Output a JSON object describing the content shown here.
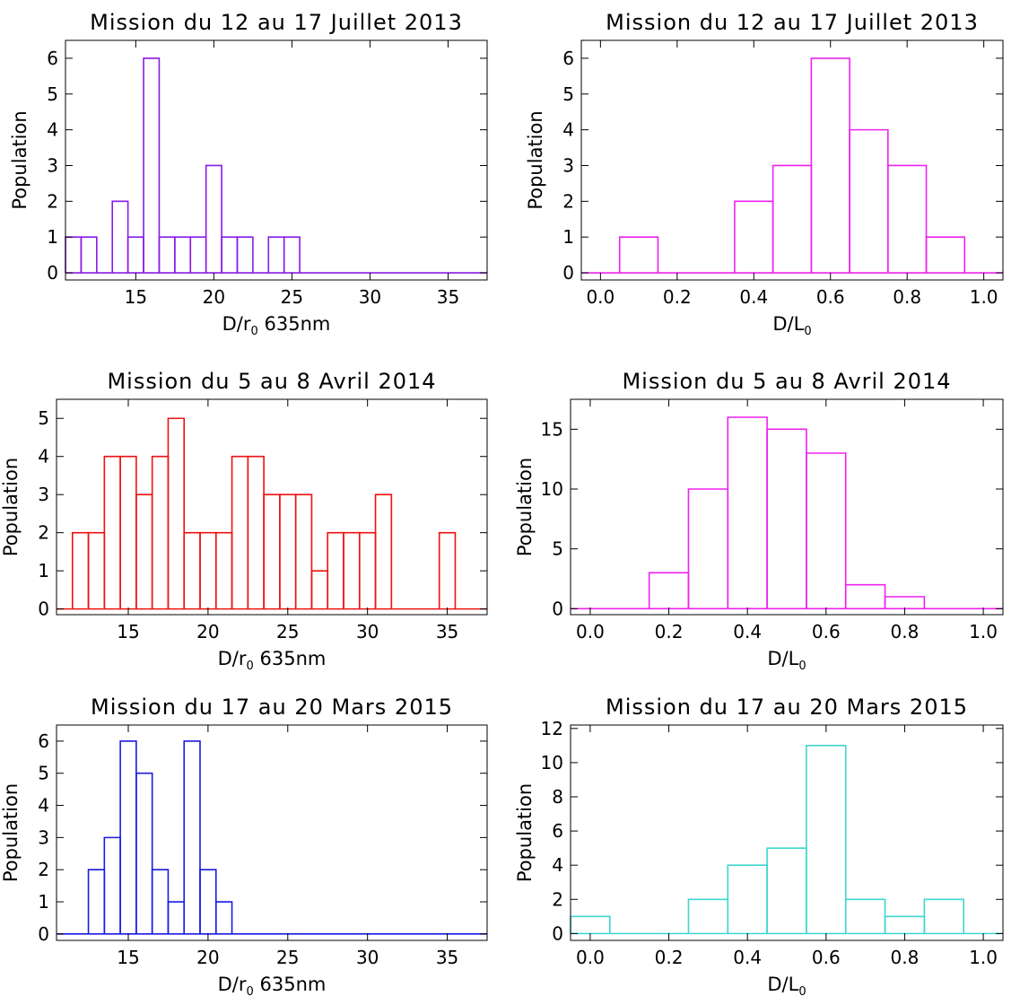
{
  "figure": {
    "description_none": "",
    "background": "#ffffff",
    "axis_color": "#000000"
  },
  "chart_data": [
    {
      "type": "bar",
      "title": "Mission du 12 au 17 Juillet 2013",
      "xlabel": {
        "base": "D/r",
        "sub": "0",
        "suffix": " 635nm"
      },
      "ylabel": "Population",
      "color": "#8a1ae6",
      "bin_width": 1,
      "bin_lefts": [
        10.5,
        11.5,
        12.5,
        13.5,
        14.5,
        15.5,
        16.5,
        17.5,
        18.5,
        19.5,
        20.5,
        21.5,
        22.5,
        23.5,
        24.5,
        25.5,
        26.5,
        27.5,
        28.5,
        29.5,
        30.5,
        31.5,
        32.5,
        33.5,
        34.5,
        35.5,
        36.5
      ],
      "values": [
        1,
        1,
        0,
        2,
        1,
        6,
        1,
        1,
        1,
        3,
        1,
        1,
        0,
        1,
        1,
        0,
        0,
        0,
        0,
        0,
        0,
        0,
        0,
        0,
        0,
        0,
        0
      ],
      "xlim": [
        10.5,
        37.5
      ],
      "ylim": [
        -0.2,
        6.5
      ],
      "xticks": [
        15,
        20,
        25,
        30,
        35
      ],
      "xtick_labels": [
        "15",
        "20",
        "25",
        "30",
        "35"
      ],
      "yticks": [
        0,
        1,
        2,
        3,
        4,
        5,
        6
      ],
      "ytick_labels": [
        "0",
        "1",
        "2",
        "3",
        "4",
        "5",
        "6"
      ]
    },
    {
      "type": "bar",
      "title": "Mission du 12 au 17 Juillet 2013",
      "xlabel": {
        "base": "D/L",
        "sub": "0",
        "suffix": ""
      },
      "ylabel": "Population",
      "color": "#ee22ee",
      "bin_width": 0.1,
      "bin_lefts": [
        -0.05,
        0.05,
        0.15,
        0.25,
        0.35,
        0.45,
        0.55,
        0.65,
        0.75,
        0.85,
        0.95
      ],
      "values": [
        0,
        1,
        0,
        0,
        2,
        3,
        6,
        4,
        3,
        1,
        0
      ],
      "xlim": [
        -0.05,
        1.05
      ],
      "ylim": [
        -0.2,
        6.5
      ],
      "xticks": [
        0.0,
        0.2,
        0.4,
        0.6,
        0.8,
        1.0
      ],
      "xtick_labels": [
        "0.0",
        "0.2",
        "0.4",
        "0.6",
        "0.8",
        "1.0"
      ],
      "yticks": [
        0,
        1,
        2,
        3,
        4,
        5,
        6
      ],
      "ytick_labels": [
        "0",
        "1",
        "2",
        "3",
        "4",
        "5",
        "6"
      ]
    },
    {
      "type": "bar",
      "title": "Mission du 5 au 8 Avril 2014",
      "xlabel": {
        "base": "D/r",
        "sub": "0",
        "suffix": " 635nm"
      },
      "ylabel": "Population",
      "color": "#ee1111",
      "bin_width": 1,
      "bin_lefts": [
        10.5,
        11.5,
        12.5,
        13.5,
        14.5,
        15.5,
        16.5,
        17.5,
        18.5,
        19.5,
        20.5,
        21.5,
        22.5,
        23.5,
        24.5,
        25.5,
        26.5,
        27.5,
        28.5,
        29.5,
        30.5,
        31.5,
        32.5,
        33.5,
        34.5,
        35.5,
        36.5
      ],
      "values": [
        0,
        2,
        2,
        4,
        4,
        3,
        4,
        5,
        2,
        2,
        2,
        4,
        4,
        3,
        3,
        3,
        1,
        2,
        2,
        2,
        3,
        0,
        0,
        0,
        2,
        0,
        0
      ],
      "xlim": [
        10.5,
        37.5
      ],
      "ylim": [
        -0.15,
        5.5
      ],
      "xticks": [
        15,
        20,
        25,
        30,
        35
      ],
      "xtick_labels": [
        "15",
        "20",
        "25",
        "30",
        "35"
      ],
      "yticks": [
        0,
        1,
        2,
        3,
        4,
        5
      ],
      "ytick_labels": [
        "0",
        "1",
        "2",
        "3",
        "4",
        "5"
      ]
    },
    {
      "type": "bar",
      "title": "Mission du 5 au 8 Avril 2014",
      "xlabel": {
        "base": "D/L",
        "sub": "0",
        "suffix": ""
      },
      "ylabel": "Population",
      "color": "#ee22ee",
      "bin_width": 0.1,
      "bin_lefts": [
        -0.05,
        0.05,
        0.15,
        0.25,
        0.35,
        0.45,
        0.55,
        0.65,
        0.75,
        0.85,
        0.95
      ],
      "values": [
        0,
        0,
        3,
        10,
        16,
        15,
        13,
        2,
        1,
        0,
        0
      ],
      "xlim": [
        -0.05,
        1.05
      ],
      "ylim": [
        -0.5,
        17.5
      ],
      "xticks": [
        0.0,
        0.2,
        0.4,
        0.6,
        0.8,
        1.0
      ],
      "xtick_labels": [
        "0.0",
        "0.2",
        "0.4",
        "0.6",
        "0.8",
        "1.0"
      ],
      "yticks": [
        0,
        5,
        10,
        15
      ],
      "ytick_labels": [
        "0",
        "5",
        "10",
        "15"
      ]
    },
    {
      "type": "bar",
      "title": "Mission du 17 au 20 Mars 2015",
      "xlabel": {
        "base": "D/r",
        "sub": "0",
        "suffix": " 635nm"
      },
      "ylabel": "Population",
      "color": "#1a1ae6",
      "bin_width": 1,
      "bin_lefts": [
        10.5,
        11.5,
        12.5,
        13.5,
        14.5,
        15.5,
        16.5,
        17.5,
        18.5,
        19.5,
        20.5,
        21.5,
        22.5,
        23.5,
        24.5,
        25.5,
        26.5,
        27.5,
        28.5,
        29.5,
        30.5,
        31.5,
        32.5,
        33.5,
        34.5,
        35.5,
        36.5
      ],
      "values": [
        0,
        0,
        2,
        3,
        6,
        5,
        2,
        1,
        6,
        2,
        1,
        0,
        0,
        0,
        0,
        0,
        0,
        0,
        0,
        0,
        0,
        0,
        0,
        0,
        0,
        0,
        0
      ],
      "xlim": [
        10.5,
        37.5
      ],
      "ylim": [
        -0.2,
        6.5
      ],
      "xticks": [
        15,
        20,
        25,
        30,
        35
      ],
      "xtick_labels": [
        "15",
        "20",
        "25",
        "30",
        "35"
      ],
      "yticks": [
        0,
        1,
        2,
        3,
        4,
        5,
        6
      ],
      "ytick_labels": [
        "0",
        "1",
        "2",
        "3",
        "4",
        "5",
        "6"
      ]
    },
    {
      "type": "bar",
      "title": "Mission du 17 au 20 Mars 2015",
      "xlabel": {
        "base": "D/L",
        "sub": "0",
        "suffix": ""
      },
      "ylabel": "Population",
      "color": "#3fd6d0",
      "bin_width": 0.1,
      "bin_lefts": [
        -0.05,
        0.05,
        0.15,
        0.25,
        0.35,
        0.45,
        0.55,
        0.65,
        0.75,
        0.85,
        0.95
      ],
      "values": [
        1,
        0,
        0,
        2,
        4,
        5,
        11,
        2,
        1,
        2,
        0
      ],
      "xlim": [
        -0.05,
        1.05
      ],
      "ylim": [
        -0.4,
        12.2
      ],
      "xticks": [
        0.0,
        0.2,
        0.4,
        0.6,
        0.8,
        1.0
      ],
      "xtick_labels": [
        "0.0",
        "0.2",
        "0.4",
        "0.6",
        "0.8",
        "1.0"
      ],
      "yticks": [
        0,
        2,
        4,
        6,
        8,
        10,
        12
      ],
      "ytick_labels": [
        "0",
        "2",
        "4",
        "6",
        "8",
        "10",
        "12"
      ]
    }
  ]
}
